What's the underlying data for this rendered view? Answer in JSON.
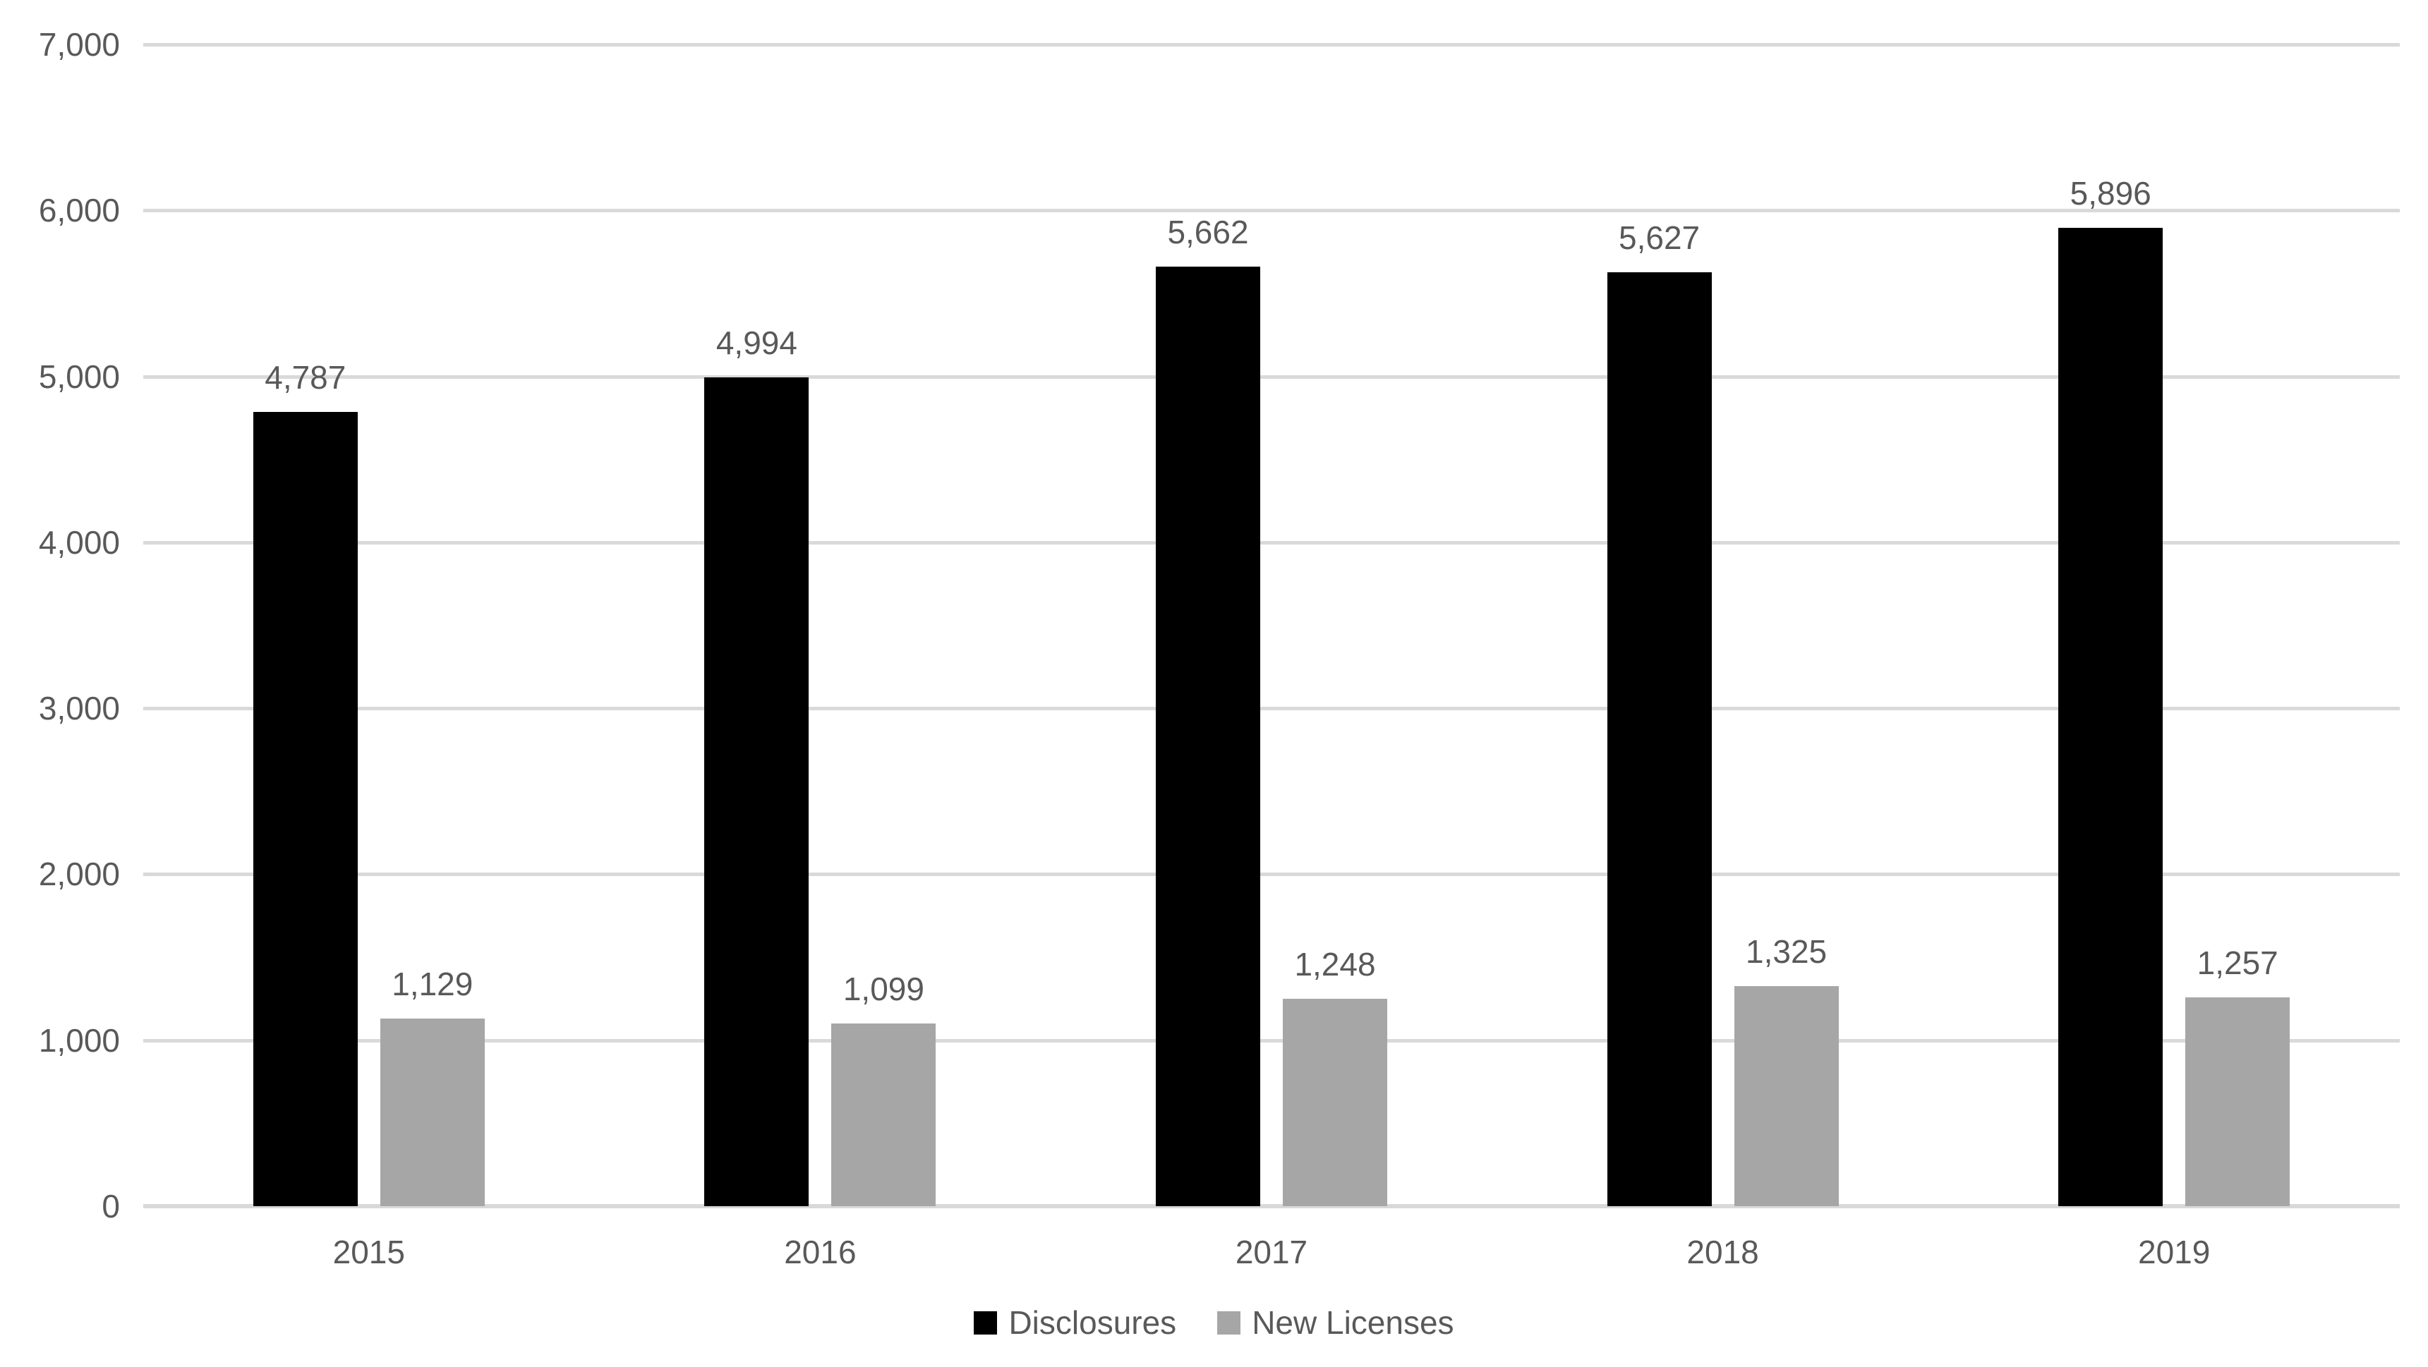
{
  "chart_data": {
    "type": "bar",
    "title": "",
    "categories": [
      "2015",
      "2016",
      "2017",
      "2018",
      "2019"
    ],
    "series": [
      {
        "name": "Disclosures",
        "color": "#000000",
        "values": [
          4787,
          4994,
          5662,
          5627,
          5896
        ],
        "labels": [
          "4,787",
          "4,994",
          "5,662",
          "5,627",
          "5,896"
        ]
      },
      {
        "name": "New Licenses",
        "color": "#A6A6A6",
        "values": [
          1129,
          1099,
          1248,
          1325,
          1257
        ],
        "labels": [
          "1,129",
          "1,099",
          "1,248",
          "1,325",
          "1,257"
        ]
      }
    ],
    "xlabel": "",
    "ylabel": "",
    "ylim": [
      0,
      7000
    ],
    "y_tick_interval": 1000,
    "y_tick_labels": [
      "0",
      "1,000",
      "2,000",
      "3,000",
      "4,000",
      "5,000",
      "6,000",
      "7,000"
    ],
    "grid": "horizontal",
    "legend_position": "bottom",
    "colors": {
      "text": "#595959",
      "gridline": "#D9D9D9",
      "background": "#FFFFFF"
    }
  }
}
